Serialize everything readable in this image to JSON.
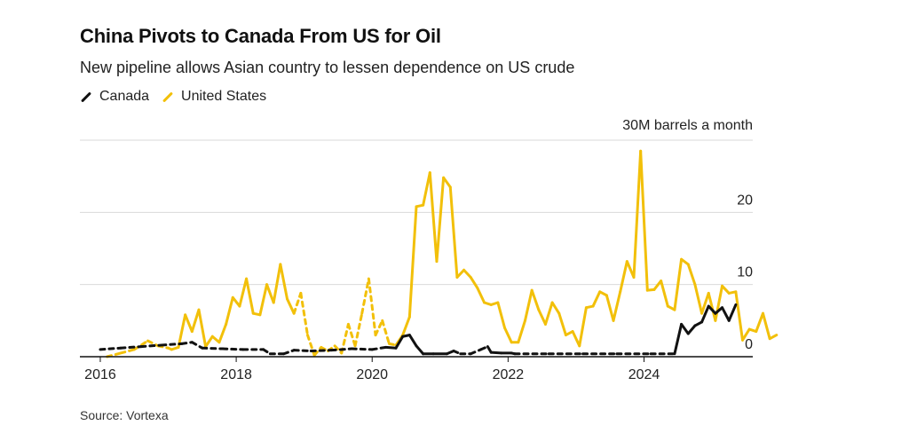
{
  "header": {
    "title": "China Pivots to Canada From US for Oil",
    "subtitle": "New pipeline allows Asian country to lessen dependence on US crude"
  },
  "source": "Source: Vortexa",
  "colors": {
    "canada": "#111111",
    "united_states": "#f2c00a",
    "grid": "#d9d9d9",
    "axis": "#111111"
  },
  "chart_data": {
    "type": "line",
    "xlim": [
      2015.7,
      2025.6
    ],
    "ylim": [
      0,
      30
    ],
    "y_unit_label": "30M barrels a month",
    "x_ticks": [
      {
        "value": 2016,
        "label": "2016"
      },
      {
        "value": 2018,
        "label": "2018"
      },
      {
        "value": 2020,
        "label": "2020"
      },
      {
        "value": 2022,
        "label": "2022"
      },
      {
        "value": 2024,
        "label": "2024"
      }
    ],
    "y_ticks": [
      {
        "value": 0,
        "label": "0"
      },
      {
        "value": 10,
        "label": "10"
      },
      {
        "value": 20,
        "label": "20"
      }
    ],
    "legend": [
      "Canada",
      "United States"
    ],
    "series": [
      {
        "name": "Canada",
        "points": [
          [
            2016.0,
            1.0,
            0
          ],
          [
            2016.3,
            1.2,
            0
          ],
          [
            2016.6,
            1.4,
            0
          ],
          [
            2016.9,
            1.6,
            0
          ],
          [
            2017.2,
            1.8,
            0
          ],
          [
            2017.35,
            2.0,
            0
          ],
          [
            2017.5,
            1.2,
            0
          ],
          [
            2017.8,
            1.1,
            0
          ],
          [
            2018.1,
            1.0,
            0
          ],
          [
            2018.4,
            1.0,
            0
          ],
          [
            2018.5,
            0.4,
            0
          ],
          [
            2018.7,
            0.4,
            0
          ],
          [
            2018.85,
            0.9,
            0
          ],
          [
            2019.1,
            0.8,
            0
          ],
          [
            2019.4,
            0.9,
            0
          ],
          [
            2019.7,
            1.1,
            0
          ],
          [
            2020.0,
            1.0,
            0
          ],
          [
            2020.2,
            1.3,
            0
          ],
          [
            2020.35,
            1.2,
            1
          ],
          [
            2020.45,
            2.8,
            1
          ],
          [
            2020.55,
            3.0,
            1
          ],
          [
            2020.65,
            1.5,
            1
          ],
          [
            2020.75,
            0.4,
            1
          ],
          [
            2020.9,
            0.4,
            1
          ],
          [
            2021.1,
            0.4,
            1
          ],
          [
            2021.2,
            0.8,
            1
          ],
          [
            2021.3,
            0.4,
            0
          ],
          [
            2021.45,
            0.4,
            0
          ],
          [
            2021.6,
            1.0,
            0
          ],
          [
            2021.7,
            1.4,
            0
          ],
          [
            2021.75,
            0.6,
            1
          ],
          [
            2021.9,
            0.5,
            1
          ],
          [
            2022.05,
            0.5,
            1
          ],
          [
            2022.1,
            0.4,
            0
          ],
          [
            2022.6,
            0.4,
            0
          ],
          [
            2023.1,
            0.4,
            0
          ],
          [
            2023.6,
            0.4,
            0
          ],
          [
            2024.1,
            0.4,
            0
          ],
          [
            2024.45,
            0.4,
            0
          ],
          [
            2024.55,
            4.5,
            1
          ],
          [
            2024.65,
            3.2,
            1
          ],
          [
            2024.75,
            4.3,
            1
          ],
          [
            2024.85,
            4.8,
            1
          ],
          [
            2024.95,
            7.0,
            1
          ],
          [
            2025.05,
            6.0,
            1
          ],
          [
            2025.15,
            6.8,
            1
          ],
          [
            2025.25,
            5.0,
            1
          ],
          [
            2025.35,
            7.2,
            1
          ]
        ]
      },
      {
        "name": "United States",
        "points": [
          [
            2016.1,
            0.0,
            0
          ],
          [
            2016.3,
            0.5,
            0
          ],
          [
            2016.5,
            1.0,
            0
          ],
          [
            2016.7,
            2.2,
            0
          ],
          [
            2016.85,
            1.5,
            0
          ],
          [
            2017.0,
            1.2,
            0
          ],
          [
            2017.05,
            1.0,
            1
          ],
          [
            2017.15,
            1.3,
            1
          ],
          [
            2017.25,
            5.8,
            1
          ],
          [
            2017.35,
            3.5,
            1
          ],
          [
            2017.45,
            6.5,
            1
          ],
          [
            2017.55,
            1.4,
            1
          ],
          [
            2017.65,
            2.8,
            1
          ],
          [
            2017.75,
            2.0,
            1
          ],
          [
            2017.85,
            4.5,
            1
          ],
          [
            2017.95,
            8.2,
            1
          ],
          [
            2018.05,
            7.0,
            1
          ],
          [
            2018.15,
            10.8,
            1
          ],
          [
            2018.25,
            6.0,
            1
          ],
          [
            2018.35,
            5.8,
            1
          ],
          [
            2018.45,
            10.0,
            1
          ],
          [
            2018.55,
            7.5,
            1
          ],
          [
            2018.65,
            12.8,
            1
          ],
          [
            2018.75,
            8.0,
            1
          ],
          [
            2018.85,
            6.0,
            1
          ],
          [
            2018.95,
            8.8,
            0
          ],
          [
            2019.05,
            3.0,
            0
          ],
          [
            2019.15,
            0.2,
            0
          ],
          [
            2019.25,
            1.3,
            0
          ],
          [
            2019.35,
            0.8,
            0
          ],
          [
            2019.45,
            1.5,
            0
          ],
          [
            2019.55,
            0.5,
            0
          ],
          [
            2019.65,
            4.5,
            0
          ],
          [
            2019.75,
            1.5,
            0
          ],
          [
            2019.85,
            6.0,
            0
          ],
          [
            2019.95,
            10.8,
            0
          ],
          [
            2020.05,
            3.0,
            0
          ],
          [
            2020.15,
            5.0,
            0
          ],
          [
            2020.25,
            1.8,
            0
          ],
          [
            2020.35,
            1.6,
            0
          ],
          [
            2020.45,
            3.0,
            1
          ],
          [
            2020.55,
            5.5,
            1
          ],
          [
            2020.65,
            20.8,
            1
          ],
          [
            2020.75,
            21.0,
            1
          ],
          [
            2020.85,
            25.5,
            1
          ],
          [
            2020.95,
            13.2,
            1
          ],
          [
            2021.05,
            24.8,
            1
          ],
          [
            2021.15,
            23.5,
            1
          ],
          [
            2021.25,
            11.0,
            1
          ],
          [
            2021.35,
            12.0,
            1
          ],
          [
            2021.45,
            11.0,
            1
          ],
          [
            2021.55,
            9.5,
            1
          ],
          [
            2021.65,
            7.5,
            1
          ],
          [
            2021.75,
            7.2,
            1
          ],
          [
            2021.85,
            7.5,
            1
          ],
          [
            2021.95,
            4.0,
            1
          ],
          [
            2022.05,
            2.0,
            1
          ],
          [
            2022.15,
            2.0,
            1
          ],
          [
            2022.25,
            5.0,
            1
          ],
          [
            2022.35,
            9.2,
            1
          ],
          [
            2022.45,
            6.5,
            1
          ],
          [
            2022.55,
            4.5,
            1
          ],
          [
            2022.65,
            7.5,
            1
          ],
          [
            2022.75,
            6.0,
            1
          ],
          [
            2022.85,
            3.0,
            1
          ],
          [
            2022.95,
            3.5,
            1
          ],
          [
            2023.05,
            1.5,
            1
          ],
          [
            2023.15,
            6.8,
            1
          ],
          [
            2023.25,
            7.0,
            1
          ],
          [
            2023.35,
            9.0,
            1
          ],
          [
            2023.45,
            8.5,
            1
          ],
          [
            2023.55,
            5.0,
            1
          ],
          [
            2023.65,
            9.0,
            1
          ],
          [
            2023.75,
            13.2,
            1
          ],
          [
            2023.85,
            11.0,
            1
          ],
          [
            2023.95,
            28.5,
            1
          ],
          [
            2024.05,
            9.2,
            1
          ],
          [
            2024.15,
            9.3,
            1
          ],
          [
            2024.25,
            10.5,
            1
          ],
          [
            2024.35,
            7.0,
            1
          ],
          [
            2024.45,
            6.5,
            1
          ],
          [
            2024.55,
            13.5,
            1
          ],
          [
            2024.65,
            12.8,
            1
          ],
          [
            2024.75,
            10.0,
            1
          ],
          [
            2024.85,
            6.0,
            1
          ],
          [
            2024.95,
            8.8,
            1
          ],
          [
            2025.05,
            5.0,
            1
          ],
          [
            2025.15,
            9.8,
            1
          ],
          [
            2025.25,
            8.8,
            1
          ],
          [
            2025.35,
            9.0,
            1
          ],
          [
            2025.45,
            2.3,
            1
          ],
          [
            2025.55,
            3.8,
            1
          ],
          [
            2025.65,
            3.5,
            1
          ],
          [
            2025.75,
            6.0,
            1
          ],
          [
            2025.85,
            2.5,
            1
          ],
          [
            2025.95,
            3.0,
            1
          ]
        ]
      }
    ]
  }
}
